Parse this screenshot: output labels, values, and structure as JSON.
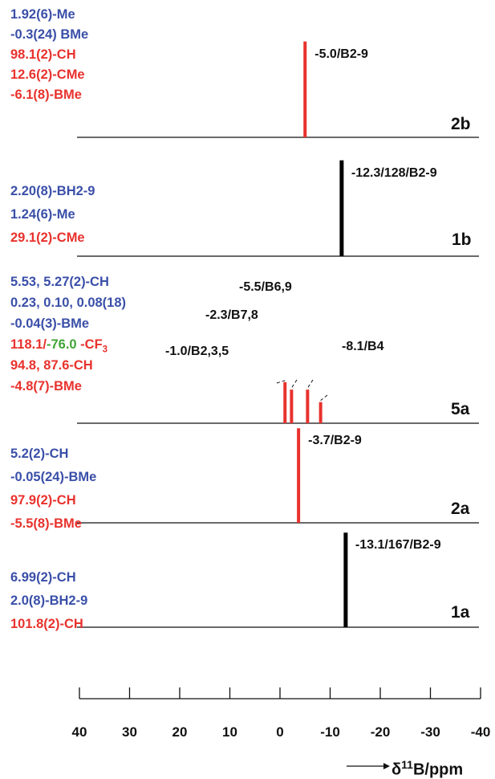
{
  "chart_data": {
    "type": "stick-spectrum",
    "xlabel_prefix": "δ",
    "xlabel_sup": "11",
    "xlabel_rest": "B/ppm",
    "xlim": [
      40,
      -40
    ],
    "ticks": [
      "40",
      "30",
      "20",
      "10",
      "0",
      "-10",
      "-20",
      "-30",
      "-40"
    ],
    "spectra": [
      {
        "id": "2b",
        "tag": "2b",
        "color": "#e8322d",
        "peaks": [
          {
            "shift": -5.0,
            "rel_height": 0.77,
            "label": "-5.0/B2-9"
          }
        ],
        "annotations": [
          {
            "text": "1.92(6)-Me",
            "color": "blue"
          },
          {
            "text": "-0.3(24) BMe",
            "color": "blue"
          },
          {
            "text": "98.1(2)-CH",
            "color": "red"
          },
          {
            "text": "12.6(2)-CMe",
            "color": "red"
          },
          {
            "text": "-6.1(8)-BMe",
            "color": "red"
          }
        ]
      },
      {
        "id": "1b",
        "tag": "1b",
        "color": "#000000",
        "peaks": [
          {
            "shift": -12.3,
            "rel_height": 0.77,
            "label": "-12.3/128/B2-9"
          }
        ],
        "annotations": [
          {
            "text": "2.20(8)-BH2-9",
            "color": "blue"
          },
          {
            "text": "1.24(6)-Me",
            "color": "blue"
          },
          {
            "text": "29.1(2)-CMe",
            "color": "red"
          }
        ]
      },
      {
        "id": "5a",
        "tag": "5a",
        "color": "#e8322d",
        "peaks": [
          {
            "shift": -1.0,
            "rel_height": 0.33,
            "label": "-1.0/B2,3,5"
          },
          {
            "shift": -2.3,
            "rel_height": 0.27,
            "label": "-2.3/B7,8"
          },
          {
            "shift": -5.5,
            "rel_height": 0.27,
            "label": "-5.5/B6,9"
          },
          {
            "shift": -8.1,
            "rel_height": 0.17,
            "label": "-8.1/B4"
          }
        ],
        "annotations": [
          {
            "text": "5.53, 5.27(2)-CH",
            "color": "blue"
          },
          {
            "text": "0.23, 0.10, 0.08(18)",
            "color": "blue"
          },
          {
            "text": "-0.04(3)-BMe",
            "color": "blue"
          },
          {
            "parts": [
              {
                "text": "118.1/",
                "color": "red"
              },
              {
                "text": "-76.0",
                "color": "green"
              },
              {
                "text": " -CF",
                "color": "red"
              },
              {
                "text": "3",
                "color": "red",
                "sub": true
              }
            ]
          },
          {
            "text": "94.8, 87.6-CH",
            "color": "red"
          },
          {
            "text": "-4.8(7)-BMe",
            "color": "red"
          }
        ]
      },
      {
        "id": "2a",
        "tag": "2a",
        "color": "#e8322d",
        "peaks": [
          {
            "shift": -3.7,
            "rel_height": 0.76,
            "label": "-3.7/B2-9"
          }
        ],
        "annotations": [
          {
            "text": "5.2(2)-CH",
            "color": "blue"
          },
          {
            "text": "-0.05(24)-BMe",
            "color": "blue"
          },
          {
            "text": "97.9(2)-CH",
            "color": "red"
          },
          {
            "text": "-5.5(8)-BMe",
            "color": "red"
          }
        ]
      },
      {
        "id": "1a",
        "tag": "1a",
        "color": "#000000",
        "peaks": [
          {
            "shift": -13.1,
            "rel_height": 0.76,
            "label": "-13.1/167/B2-9"
          }
        ],
        "annotations": [
          {
            "text": "6.99(2)-CH",
            "color": "blue"
          },
          {
            "text": "2.0(8)-BH2-9",
            "color": "blue"
          },
          {
            "text": "101.8(2)-CH",
            "color": "red"
          }
        ]
      }
    ]
  }
}
